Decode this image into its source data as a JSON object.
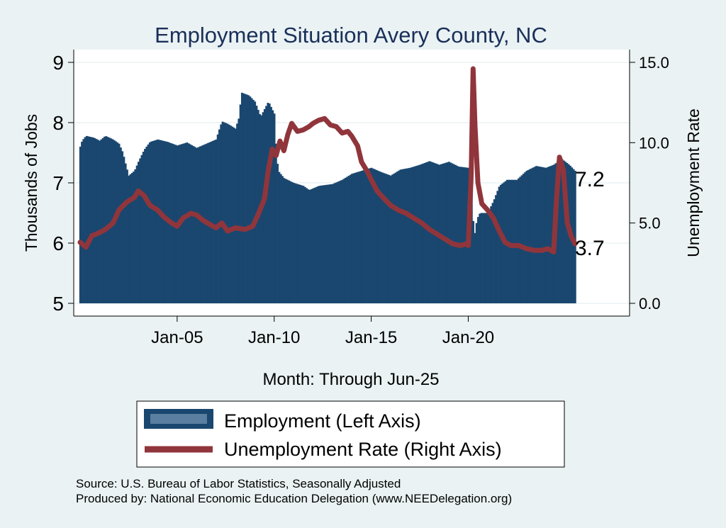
{
  "chart_data": {
    "type": "bar+line",
    "title": "Employment Situation Avery  County, NC",
    "xlabel": "Month: Through Jun-25",
    "ylabel_left": "Thousands of Jobs",
    "ylabel_right": "Unemployment Rate",
    "x_range": [
      2000.0,
      2025.5
    ],
    "ylim_left": [
      5,
      9
    ],
    "ylim_right": [
      0,
      15
    ],
    "left_ticks": [
      "5",
      "6",
      "7",
      "8",
      "9"
    ],
    "right_ticks": [
      "0.0",
      "5.0",
      "10.0",
      "15.0"
    ],
    "x_ticks": [
      {
        "label": "Jan-05",
        "value": 2005.0
      },
      {
        "label": "Jan-10",
        "value": 2010.0
      },
      {
        "label": "Jan-15",
        "value": 2015.0
      },
      {
        "label": "Jan-20",
        "value": 2020.0
      }
    ],
    "series": [
      {
        "name": "Employment (Left Axis)",
        "kind": "bar",
        "color": "#1a476f",
        "points": [
          [
            2000.0,
            7.6
          ],
          [
            2000.1,
            7.7
          ],
          [
            2000.3,
            7.78
          ],
          [
            2000.7,
            7.75
          ],
          [
            2001.0,
            7.7
          ],
          [
            2001.3,
            7.78
          ],
          [
            2001.7,
            7.72
          ],
          [
            2002.0,
            7.65
          ],
          [
            2002.2,
            7.5
          ],
          [
            2002.35,
            7.3
          ],
          [
            2002.5,
            7.12
          ],
          [
            2002.8,
            7.2
          ],
          [
            2003.0,
            7.35
          ],
          [
            2003.3,
            7.55
          ],
          [
            2003.6,
            7.68
          ],
          [
            2004.0,
            7.72
          ],
          [
            2004.5,
            7.68
          ],
          [
            2005.0,
            7.62
          ],
          [
            2005.5,
            7.67
          ],
          [
            2006.0,
            7.58
          ],
          [
            2006.5,
            7.65
          ],
          [
            2007.0,
            7.72
          ],
          [
            2007.3,
            8.02
          ],
          [
            2007.6,
            7.98
          ],
          [
            2008.0,
            7.9
          ],
          [
            2008.2,
            8.1
          ],
          [
            2008.3,
            8.5
          ],
          [
            2008.7,
            8.45
          ],
          [
            2009.0,
            8.35
          ],
          [
            2009.3,
            8.1
          ],
          [
            2009.7,
            8.35
          ],
          [
            2010.0,
            8.15
          ],
          [
            2010.1,
            7.55
          ],
          [
            2010.2,
            7.2
          ],
          [
            2010.5,
            7.08
          ],
          [
            2011.0,
            7.0
          ],
          [
            2011.5,
            6.95
          ],
          [
            2011.8,
            6.88
          ],
          [
            2012.3,
            6.95
          ],
          [
            2013.0,
            6.98
          ],
          [
            2013.5,
            7.05
          ],
          [
            2014.0,
            7.15
          ],
          [
            2014.5,
            7.2
          ],
          [
            2015.0,
            7.25
          ],
          [
            2015.5,
            7.18
          ],
          [
            2016.0,
            7.12
          ],
          [
            2016.5,
            7.22
          ],
          [
            2017.0,
            7.25
          ],
          [
            2017.5,
            7.3
          ],
          [
            2018.0,
            7.36
          ],
          [
            2018.5,
            7.3
          ],
          [
            2019.0,
            7.35
          ],
          [
            2019.5,
            7.27
          ],
          [
            2020.0,
            7.25
          ],
          [
            2020.15,
            6.9
          ],
          [
            2020.3,
            6.1
          ],
          [
            2020.45,
            6.4
          ],
          [
            2020.6,
            6.5
          ],
          [
            2021.0,
            6.5
          ],
          [
            2021.3,
            6.7
          ],
          [
            2021.6,
            6.95
          ],
          [
            2022.0,
            7.05
          ],
          [
            2022.5,
            7.05
          ],
          [
            2023.0,
            7.2
          ],
          [
            2023.5,
            7.28
          ],
          [
            2024.0,
            7.25
          ],
          [
            2024.4,
            7.3
          ],
          [
            2024.8,
            7.4
          ],
          [
            2025.2,
            7.3
          ],
          [
            2025.5,
            7.2
          ]
        ],
        "end_label": "7.2"
      },
      {
        "name": "Unemployment Rate (Right Axis)",
        "kind": "line",
        "axis": "right",
        "color": "#90353b",
        "points": [
          [
            2000.0,
            3.8
          ],
          [
            2000.3,
            3.5
          ],
          [
            2000.6,
            4.2
          ],
          [
            2001.0,
            4.4
          ],
          [
            2001.3,
            4.6
          ],
          [
            2001.7,
            5.0
          ],
          [
            2002.0,
            5.8
          ],
          [
            2002.4,
            6.3
          ],
          [
            2002.8,
            6.6
          ],
          [
            2003.0,
            7.0
          ],
          [
            2003.3,
            6.7
          ],
          [
            2003.6,
            6.1
          ],
          [
            2004.0,
            5.8
          ],
          [
            2004.3,
            5.4
          ],
          [
            2004.7,
            5.0
          ],
          [
            2005.0,
            4.8
          ],
          [
            2005.3,
            5.3
          ],
          [
            2005.7,
            5.6
          ],
          [
            2006.0,
            5.5
          ],
          [
            2006.3,
            5.2
          ],
          [
            2006.7,
            4.9
          ],
          [
            2007.0,
            4.7
          ],
          [
            2007.3,
            5.0
          ],
          [
            2007.6,
            4.5
          ],
          [
            2008.0,
            4.7
          ],
          [
            2008.5,
            4.6
          ],
          [
            2008.9,
            4.8
          ],
          [
            2009.2,
            5.6
          ],
          [
            2009.5,
            6.5
          ],
          [
            2009.7,
            8.3
          ],
          [
            2009.9,
            9.6
          ],
          [
            2010.1,
            9.2
          ],
          [
            2010.3,
            10.1
          ],
          [
            2010.5,
            9.5
          ],
          [
            2010.7,
            10.5
          ],
          [
            2010.9,
            11.2
          ],
          [
            2011.2,
            10.7
          ],
          [
            2011.5,
            10.8
          ],
          [
            2011.8,
            11.0
          ],
          [
            2012.0,
            11.2
          ],
          [
            2012.3,
            11.4
          ],
          [
            2012.6,
            11.5
          ],
          [
            2012.9,
            11.1
          ],
          [
            2013.2,
            11.0
          ],
          [
            2013.5,
            10.6
          ],
          [
            2013.8,
            10.7
          ],
          [
            2014.0,
            10.4
          ],
          [
            2014.3,
            9.8
          ],
          [
            2014.5,
            8.8
          ],
          [
            2014.8,
            8.2
          ],
          [
            2015.0,
            7.7
          ],
          [
            2015.3,
            7.0
          ],
          [
            2015.6,
            6.6
          ],
          [
            2016.0,
            6.1
          ],
          [
            2016.4,
            5.8
          ],
          [
            2016.8,
            5.6
          ],
          [
            2017.2,
            5.3
          ],
          [
            2017.6,
            5.0
          ],
          [
            2018.0,
            4.6
          ],
          [
            2018.4,
            4.3
          ],
          [
            2018.8,
            4.0
          ],
          [
            2019.2,
            3.7
          ],
          [
            2019.6,
            3.6
          ],
          [
            2019.9,
            3.7
          ],
          [
            2020.0,
            3.6
          ],
          [
            2020.15,
            8.0
          ],
          [
            2020.25,
            14.6
          ],
          [
            2020.35,
            11.0
          ],
          [
            2020.5,
            7.5
          ],
          [
            2020.7,
            6.2
          ],
          [
            2021.0,
            5.8
          ],
          [
            2021.3,
            5.3
          ],
          [
            2021.6,
            4.5
          ],
          [
            2021.9,
            3.8
          ],
          [
            2022.2,
            3.6
          ],
          [
            2022.6,
            3.6
          ],
          [
            2023.0,
            3.4
          ],
          [
            2023.4,
            3.3
          ],
          [
            2023.8,
            3.3
          ],
          [
            2024.1,
            3.4
          ],
          [
            2024.4,
            3.2
          ],
          [
            2024.55,
            6.5
          ],
          [
            2024.7,
            9.1
          ],
          [
            2024.9,
            8.3
          ],
          [
            2025.1,
            5.0
          ],
          [
            2025.3,
            4.2
          ],
          [
            2025.5,
            3.7
          ]
        ],
        "end_label": "3.7"
      }
    ],
    "legend": {
      "position": "bottom",
      "items": [
        {
          "label": "Employment (Left Axis)",
          "color": "#1a476f",
          "symbol": "bar"
        },
        {
          "label": "Unemployment Rate (Right Axis)",
          "color": "#90353b",
          "symbol": "line"
        }
      ]
    },
    "notes": [
      "Source: U.S. Bureau of Labor Statistics, Seasonally Adjusted",
      "Produced by: National Economic Education Delegation (www.NEEDelegation.org)"
    ]
  }
}
